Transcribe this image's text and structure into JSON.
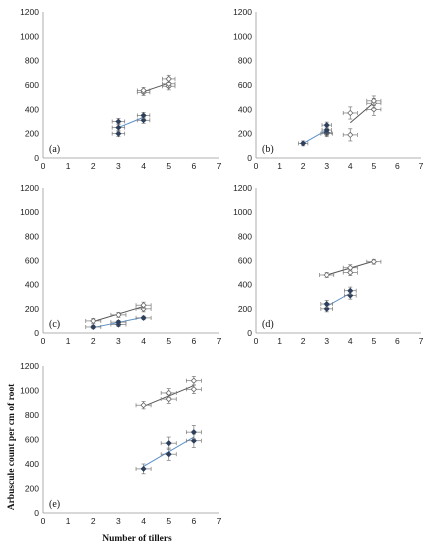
{
  "figure": {
    "ylabel": "Arbuscule count per cm of root",
    "xlabel": "Number of tillers"
  },
  "chart_data": [
    {
      "type": "scatter",
      "label": "(a)",
      "xlim": [
        0,
        7
      ],
      "ylim": [
        0,
        1200
      ],
      "xticks": [
        0,
        1,
        2,
        3,
        4,
        5,
        6,
        7
      ],
      "yticks": [
        0,
        200,
        400,
        600,
        800,
        1000,
        1200
      ],
      "grid": false,
      "series": [
        {
          "style": "open",
          "color": "#666666",
          "line_color": "#555555",
          "points": [
            {
              "x": 4,
              "y": 540,
              "xerr": 0.25,
              "yerr": 25
            },
            {
              "x": 4,
              "y": 555,
              "xerr": 0.25,
              "yerr": 25
            },
            {
              "x": 5,
              "y": 590,
              "xerr": 0.25,
              "yerr": 30
            },
            {
              "x": 5,
              "y": 610,
              "xerr": 0.25,
              "yerr": 30
            },
            {
              "x": 5,
              "y": 650,
              "xerr": 0.25,
              "yerr": 30
            }
          ],
          "trend": [
            [
              4,
              545
            ],
            [
              5,
              615
            ]
          ]
        },
        {
          "style": "filled",
          "color": "#2e3f5c",
          "line_color": "#5b8fc8",
          "points": [
            {
              "x": 3,
              "y": 200,
              "xerr": 0.25,
              "yerr": 25
            },
            {
              "x": 3,
              "y": 250,
              "xerr": 0.25,
              "yerr": 30
            },
            {
              "x": 3,
              "y": 300,
              "xerr": 0.25,
              "yerr": 25
            },
            {
              "x": 4,
              "y": 310,
              "xerr": 0.25,
              "yerr": 25
            },
            {
              "x": 4,
              "y": 350,
              "xerr": 0.25,
              "yerr": 25
            }
          ],
          "trend": [
            [
              3,
              250
            ],
            [
              4,
              335
            ]
          ]
        }
      ]
    },
    {
      "type": "scatter",
      "label": "(b)",
      "xlim": [
        0,
        7
      ],
      "ylim": [
        0,
        1200
      ],
      "xticks": [
        0,
        1,
        2,
        3,
        4,
        5,
        6,
        7
      ],
      "yticks": [
        0,
        200,
        400,
        600,
        800,
        1000,
        1200
      ],
      "grid": false,
      "series": [
        {
          "style": "open",
          "color": "#666666",
          "line_color": "#555555",
          "points": [
            {
              "x": 3,
              "y": 200,
              "xerr": 0.25,
              "yerr": 25
            },
            {
              "x": 4,
              "y": 190,
              "xerr": 0.3,
              "yerr": 50
            },
            {
              "x": 4,
              "y": 370,
              "xerr": 0.3,
              "yerr": 50
            },
            {
              "x": 5,
              "y": 400,
              "xerr": 0.3,
              "yerr": 50
            },
            {
              "x": 5,
              "y": 450,
              "xerr": 0.3,
              "yerr": 40
            },
            {
              "x": 5,
              "y": 470,
              "xerr": 0.3,
              "yerr": 40
            }
          ],
          "trend": [
            [
              4,
              290
            ],
            [
              5,
              455
            ]
          ]
        },
        {
          "style": "filled",
          "color": "#2e3f5c",
          "line_color": "#5b8fc8",
          "points": [
            {
              "x": 2,
              "y": 120,
              "xerr": 0.2,
              "yerr": 20
            },
            {
              "x": 3,
              "y": 210,
              "xerr": 0.2,
              "yerr": 25
            },
            {
              "x": 3,
              "y": 230,
              "xerr": 0.2,
              "yerr": 25
            },
            {
              "x": 3,
              "y": 270,
              "xerr": 0.2,
              "yerr": 25
            }
          ],
          "trend": [
            [
              2,
              120
            ],
            [
              3,
              230
            ]
          ]
        }
      ]
    },
    {
      "type": "scatter",
      "label": "(c)",
      "xlim": [
        0,
        7
      ],
      "ylim": [
        0,
        1200
      ],
      "xticks": [
        0,
        1,
        2,
        3,
        4,
        5,
        6,
        7
      ],
      "yticks": [
        0,
        200,
        400,
        600,
        800,
        1000,
        1200
      ],
      "grid": false,
      "series": [
        {
          "style": "open",
          "color": "#666666",
          "line_color": "#555555",
          "points": [
            {
              "x": 2,
              "y": 100,
              "xerr": 0.3,
              "yerr": 20
            },
            {
              "x": 3,
              "y": 150,
              "xerr": 0.3,
              "yerr": 20
            },
            {
              "x": 4,
              "y": 200,
              "xerr": 0.3,
              "yerr": 25
            },
            {
              "x": 4,
              "y": 230,
              "xerr": 0.3,
              "yerr": 25
            }
          ],
          "trend": [
            [
              2,
              95
            ],
            [
              4,
              220
            ]
          ]
        },
        {
          "style": "filled",
          "color": "#2e3f5c",
          "line_color": "#5b8fc8",
          "points": [
            {
              "x": 2,
              "y": 50,
              "xerr": 0.3,
              "yerr": 15
            },
            {
              "x": 3,
              "y": 70,
              "xerr": 0.3,
              "yerr": 15
            },
            {
              "x": 3,
              "y": 90,
              "xerr": 0.3,
              "yerr": 15
            },
            {
              "x": 4,
              "y": 125,
              "xerr": 0.3,
              "yerr": 15
            }
          ],
          "trend": [
            [
              2,
              45
            ],
            [
              4,
              130
            ]
          ]
        }
      ]
    },
    {
      "type": "scatter",
      "label": "(d)",
      "xlim": [
        0,
        7
      ],
      "ylim": [
        0,
        1200
      ],
      "xticks": [
        0,
        1,
        2,
        3,
        4,
        5,
        6,
        7
      ],
      "yticks": [
        0,
        200,
        400,
        600,
        800,
        1000,
        1200
      ],
      "grid": false,
      "series": [
        {
          "style": "open",
          "color": "#666666",
          "line_color": "#555555",
          "points": [
            {
              "x": 3,
              "y": 480,
              "xerr": 0.3,
              "yerr": 20
            },
            {
              "x": 4,
              "y": 500,
              "xerr": 0.3,
              "yerr": 25
            },
            {
              "x": 4,
              "y": 540,
              "xerr": 0.3,
              "yerr": 25
            },
            {
              "x": 5,
              "y": 590,
              "xerr": 0.3,
              "yerr": 20
            }
          ],
          "trend": [
            [
              3,
              480
            ],
            [
              5,
              595
            ]
          ]
        },
        {
          "style": "filled",
          "color": "#2e3f5c",
          "line_color": "#5b8fc8",
          "points": [
            {
              "x": 3,
              "y": 200,
              "xerr": 0.25,
              "yerr": 25
            },
            {
              "x": 3,
              "y": 240,
              "xerr": 0.25,
              "yerr": 30
            },
            {
              "x": 4,
              "y": 310,
              "xerr": 0.25,
              "yerr": 30
            },
            {
              "x": 4,
              "y": 350,
              "xerr": 0.25,
              "yerr": 30
            }
          ],
          "trend": [
            [
              3,
              220
            ],
            [
              4,
              330
            ]
          ]
        }
      ]
    },
    {
      "type": "scatter",
      "label": "(e)",
      "xlim": [
        0,
        7
      ],
      "ylim": [
        0,
        1200
      ],
      "xticks": [
        0,
        1,
        2,
        3,
        4,
        5,
        6,
        7
      ],
      "yticks": [
        0,
        200,
        400,
        600,
        800,
        1000,
        1200
      ],
      "grid": false,
      "series": [
        {
          "style": "open",
          "color": "#666666",
          "line_color": "#555555",
          "points": [
            {
              "x": 4,
              "y": 880,
              "xerr": 0.3,
              "yerr": 30
            },
            {
              "x": 5,
              "y": 930,
              "xerr": 0.3,
              "yerr": 35
            },
            {
              "x": 5,
              "y": 980,
              "xerr": 0.3,
              "yerr": 35
            },
            {
              "x": 6,
              "y": 1010,
              "xerr": 0.3,
              "yerr": 35
            },
            {
              "x": 6,
              "y": 1080,
              "xerr": 0.3,
              "yerr": 35
            }
          ],
          "trend": [
            [
              4,
              870
            ],
            [
              6,
              1040
            ]
          ]
        },
        {
          "style": "filled",
          "color": "#2e3f5c",
          "line_color": "#5b8fc8",
          "points": [
            {
              "x": 4,
              "y": 360,
              "xerr": 0.3,
              "yerr": 40
            },
            {
              "x": 5,
              "y": 480,
              "xerr": 0.3,
              "yerr": 50
            },
            {
              "x": 5,
              "y": 570,
              "xerr": 0.3,
              "yerr": 50
            },
            {
              "x": 6,
              "y": 590,
              "xerr": 0.3,
              "yerr": 55
            },
            {
              "x": 6,
              "y": 660,
              "xerr": 0.3,
              "yerr": 55
            }
          ],
          "trend": [
            [
              4,
              380
            ],
            [
              6,
              620
            ]
          ]
        }
      ]
    }
  ]
}
